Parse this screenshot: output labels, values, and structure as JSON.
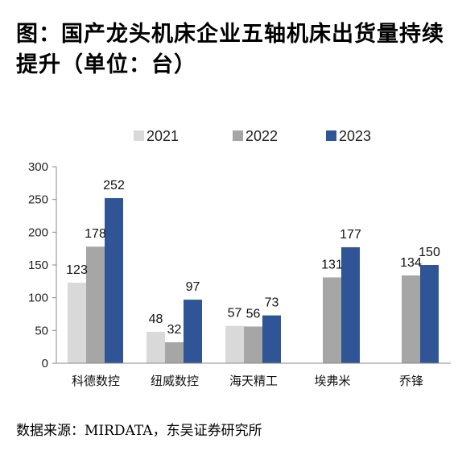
{
  "title": "图：国产龙头机床企业五轴机床出货量持续提升（单位：台）",
  "source": "数据来源：MIRDATA，东吴证券研究所",
  "chart_data": {
    "type": "bar",
    "categories": [
      "科德数控",
      "纽威数控",
      "海天精工",
      "埃弗米",
      "乔锋"
    ],
    "series": [
      {
        "name": "2021",
        "color": "#d9d9d9",
        "values": [
          123,
          48,
          57,
          null,
          null
        ],
        "labels": [
          "123",
          "48",
          "57",
          "",
          ""
        ]
      },
      {
        "name": "2022",
        "color": "#a6a6a6",
        "values": [
          178,
          32,
          56,
          131,
          134
        ],
        "labels": [
          "178",
          "32",
          "56",
          "131",
          "134"
        ]
      },
      {
        "name": "2023",
        "color": "#2f5597",
        "values": [
          252,
          97,
          73,
          177,
          150
        ],
        "labels": [
          "252",
          "97",
          "73",
          "177",
          "150"
        ]
      }
    ],
    "ylim": [
      0,
      300
    ],
    "yticks": [
      "0",
      "50",
      "100",
      "150",
      "200",
      "250",
      "300"
    ],
    "legend_position": "top-center",
    "grid": false
  }
}
